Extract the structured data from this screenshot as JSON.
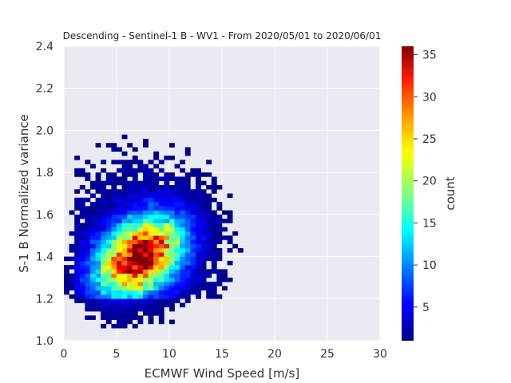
{
  "chart_data": {
    "type": "heatmap",
    "title": "Descending - Sentinel-1 B - WV1 - From 2020/05/01 to 2020/06/01",
    "xlabel": "ECMWF Wind Speed [m/s]",
    "ylabel": "S-1 B Normalized variance",
    "xlim": [
      0,
      30
    ],
    "ylim": [
      1.0,
      2.4
    ],
    "xticks": [
      "0",
      "5",
      "10",
      "15",
      "20",
      "25",
      "30"
    ],
    "yticks": [
      "1.0",
      "1.2",
      "1.4",
      "1.6",
      "1.8",
      "2.0",
      "2.2",
      "2.4"
    ],
    "grid": true,
    "background_color": "#EAEAF2",
    "colormap": "jet",
    "colorbar": {
      "label": "count",
      "range": [
        1,
        36
      ],
      "ticks": [
        "5",
        "10",
        "15",
        "20",
        "25",
        "30",
        "35"
      ]
    },
    "bin_size": {
      "x": 0.5,
      "y": 0.02
    },
    "density_peak": {
      "x": 7.2,
      "y": 1.4,
      "count": 35
    },
    "density_spread": {
      "x": 3.2,
      "y": 0.15,
      "correlation": 0.35
    }
  }
}
